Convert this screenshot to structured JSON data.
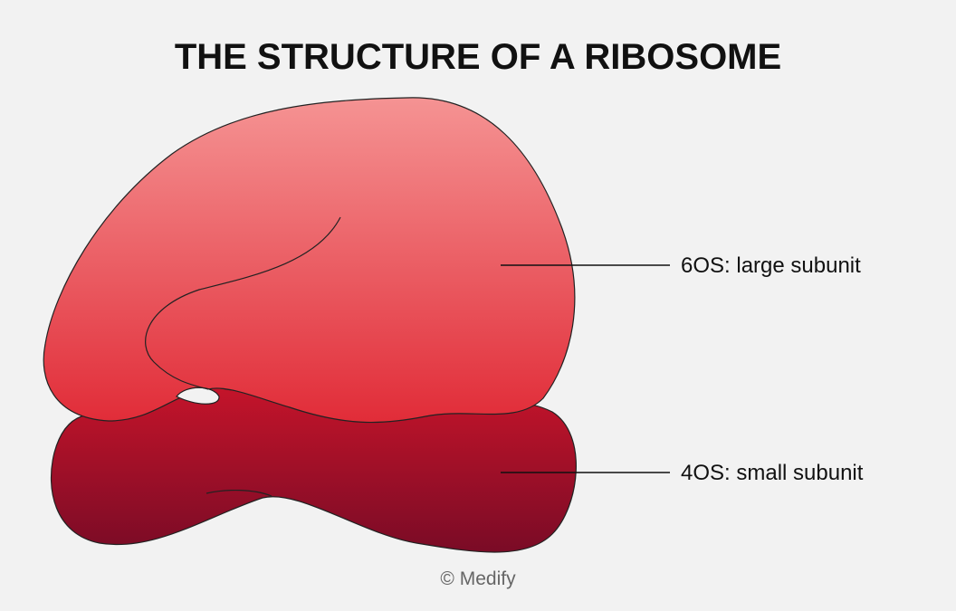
{
  "header": {
    "title": "THE STRUCTURE OF A RIBOSOME"
  },
  "labels": [
    {
      "label": "6OS: large subunit"
    },
    {
      "label": "4OS: small subunit"
    }
  ],
  "footer": {
    "credit": "© Medify"
  }
}
